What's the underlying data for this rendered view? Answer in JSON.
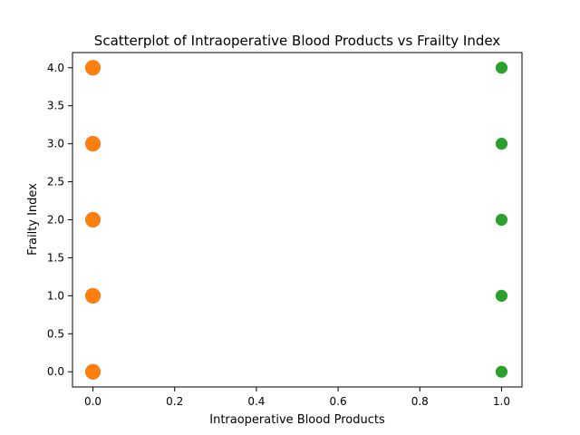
{
  "chart_data": {
    "type": "scatter",
    "title": "Scatterplot of Intraoperative Blood Products vs Frailty Index",
    "xlabel": "Intraoperative Blood Products",
    "ylabel": "Frailty Index",
    "xlim": [
      -0.05,
      1.05
    ],
    "ylim": [
      -0.2,
      4.2
    ],
    "x_ticks": [
      0.0,
      0.2,
      0.4,
      0.6,
      0.8,
      1.0
    ],
    "x_tick_labels": [
      "0.0",
      "0.2",
      "0.4",
      "0.6",
      "0.8",
      "1.0"
    ],
    "y_ticks": [
      0.0,
      0.5,
      1.0,
      1.5,
      2.0,
      2.5,
      3.0,
      3.5,
      4.0
    ],
    "y_tick_labels": [
      "0.0",
      "0.5",
      "1.0",
      "1.5",
      "2.0",
      "2.5",
      "3.0",
      "3.5",
      "4.0"
    ],
    "grid": false,
    "legend": "none",
    "series": [
      {
        "color": "#1f77b4",
        "marker_scale": 1.3,
        "points": [
          {
            "x": 0,
            "y": 0
          },
          {
            "x": 0,
            "y": 1
          },
          {
            "x": 0,
            "y": 2
          },
          {
            "x": 0,
            "y": 3
          },
          {
            "x": 0,
            "y": 4
          }
        ]
      },
      {
        "color": "#ff7f0e",
        "marker_scale": 1.3,
        "points": [
          {
            "x": 0,
            "y": 0
          },
          {
            "x": 0,
            "y": 1
          },
          {
            "x": 0,
            "y": 2
          },
          {
            "x": 0,
            "y": 3
          },
          {
            "x": 0,
            "y": 4
          }
        ]
      },
      {
        "color": "#2ca02c",
        "marker_scale": 1.0,
        "points": [
          {
            "x": 1,
            "y": 0
          },
          {
            "x": 1,
            "y": 1
          },
          {
            "x": 1,
            "y": 2
          },
          {
            "x": 1,
            "y": 3
          },
          {
            "x": 1,
            "y": 4
          }
        ]
      }
    ]
  }
}
